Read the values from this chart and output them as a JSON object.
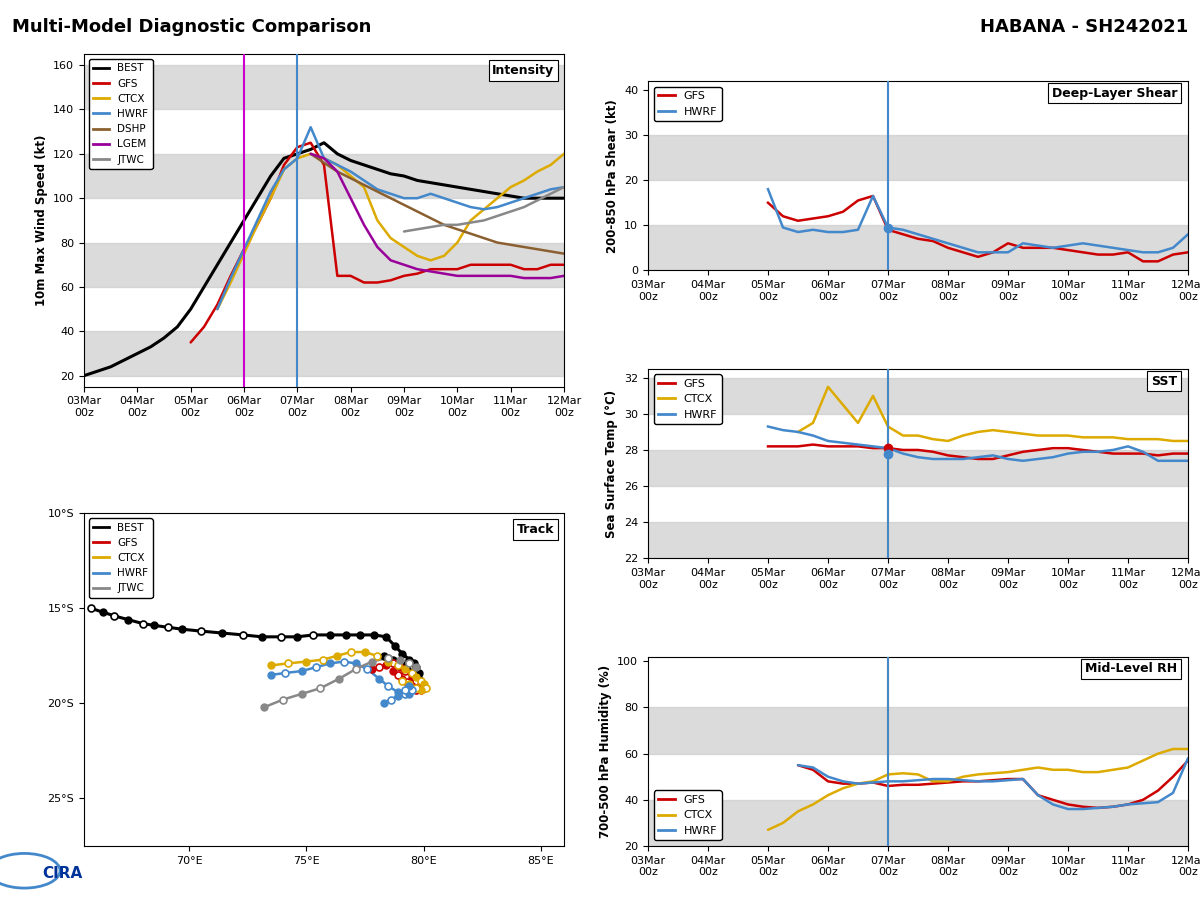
{
  "title_left": "Multi-Model Diagnostic Comparison",
  "title_right": "HABANA - SH242021",
  "colors": {
    "BEST": "#000000",
    "GFS": "#cc0000",
    "CTCX": "#ddaa00",
    "HWRF": "#4488cc",
    "DSHP": "#8B6030",
    "LGEM": "#990099",
    "JTWC": "#888888"
  },
  "xtick_pos": [
    0,
    4,
    8,
    12,
    16,
    20,
    24,
    28,
    32,
    36
  ],
  "xtick_labels": [
    "03Mar\n00z",
    "04Mar\n00z",
    "05Mar\n00z",
    "06Mar\n00z",
    "07Mar\n00z",
    "08Mar\n00z",
    "09Mar\n00z",
    "10Mar\n00z",
    "11Mar\n00z",
    "12Mar\n00z"
  ],
  "intensity_bands_y": [
    20,
    40,
    60,
    80,
    100,
    120,
    140,
    160
  ],
  "shear_bands_y": [
    0,
    10,
    20,
    30,
    40
  ],
  "sst_bands_y": [
    22,
    24,
    26,
    28,
    30,
    32
  ],
  "rh_bands_y": [
    20,
    40,
    60,
    80,
    100
  ]
}
